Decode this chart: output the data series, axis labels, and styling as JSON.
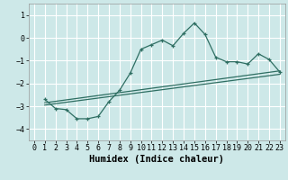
{
  "xlabel": "Humidex (Indice chaleur)",
  "ylabel": "",
  "bg_color": "#cde8e8",
  "grid_color": "#ffffff",
  "line_color": "#2e6e62",
  "xlim": [
    -0.5,
    23.5
  ],
  "ylim": [
    -4.5,
    1.5
  ],
  "yticks": [
    1,
    0,
    -1,
    -2,
    -3,
    -4
  ],
  "xticks": [
    0,
    1,
    2,
    3,
    4,
    5,
    6,
    7,
    8,
    9,
    10,
    11,
    12,
    13,
    14,
    15,
    16,
    17,
    18,
    19,
    20,
    21,
    22,
    23
  ],
  "curve1_x": [
    1,
    2,
    3,
    4,
    5,
    6,
    7,
    8,
    9,
    10,
    11,
    12,
    13,
    14,
    15,
    16,
    17,
    18,
    19,
    20,
    21,
    22,
    23
  ],
  "curve1_y": [
    -2.7,
    -3.1,
    -3.15,
    -3.55,
    -3.55,
    -3.45,
    -2.8,
    -2.3,
    -1.55,
    -0.5,
    -0.3,
    -0.1,
    -0.35,
    0.2,
    0.65,
    0.15,
    -0.85,
    -1.05,
    -1.05,
    -1.15,
    -0.7,
    -0.95,
    -1.5
  ],
  "curve2_x": [
    1,
    23
  ],
  "curve2_y": [
    -2.85,
    -1.45
  ],
  "curve3_x": [
    1,
    23
  ],
  "curve3_y": [
    -2.95,
    -1.6
  ],
  "tick_fontsize": 6,
  "label_fontsize": 7.5
}
